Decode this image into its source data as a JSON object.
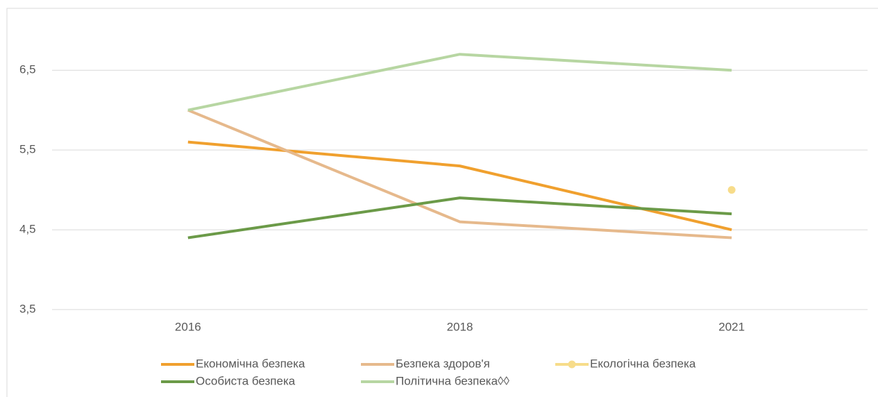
{
  "chart_data": {
    "type": "line",
    "categories": [
      "2016",
      "2018",
      "2021"
    ],
    "series": [
      {
        "name": "Економічна безпека",
        "color": "#f0a02e",
        "values": [
          5.6,
          5.3,
          4.5
        ]
      },
      {
        "name": "Безпека здоров'я",
        "color": "#e6b98c",
        "values": [
          6.0,
          4.6,
          4.4
        ]
      },
      {
        "name": "Екологічна безпека",
        "color": "#f7dc8a",
        "values": [
          null,
          null,
          5.0
        ],
        "marker": true
      },
      {
        "name": "Особиста безпека",
        "color": "#6b9a48",
        "values": [
          4.4,
          4.9,
          4.7
        ]
      },
      {
        "name": "Політична безпека◊◊",
        "color": "#b7d6a2",
        "values": [
          6.0,
          6.7,
          6.5
        ]
      }
    ],
    "ylim": [
      3.5,
      7.25
    ],
    "yticks": [
      {
        "value": 3.5,
        "label": "3,5"
      },
      {
        "value": 4.5,
        "label": "4,5"
      },
      {
        "value": 5.5,
        "label": "5,5"
      },
      {
        "value": 6.5,
        "label": "6,5"
      }
    ],
    "grid": true
  }
}
